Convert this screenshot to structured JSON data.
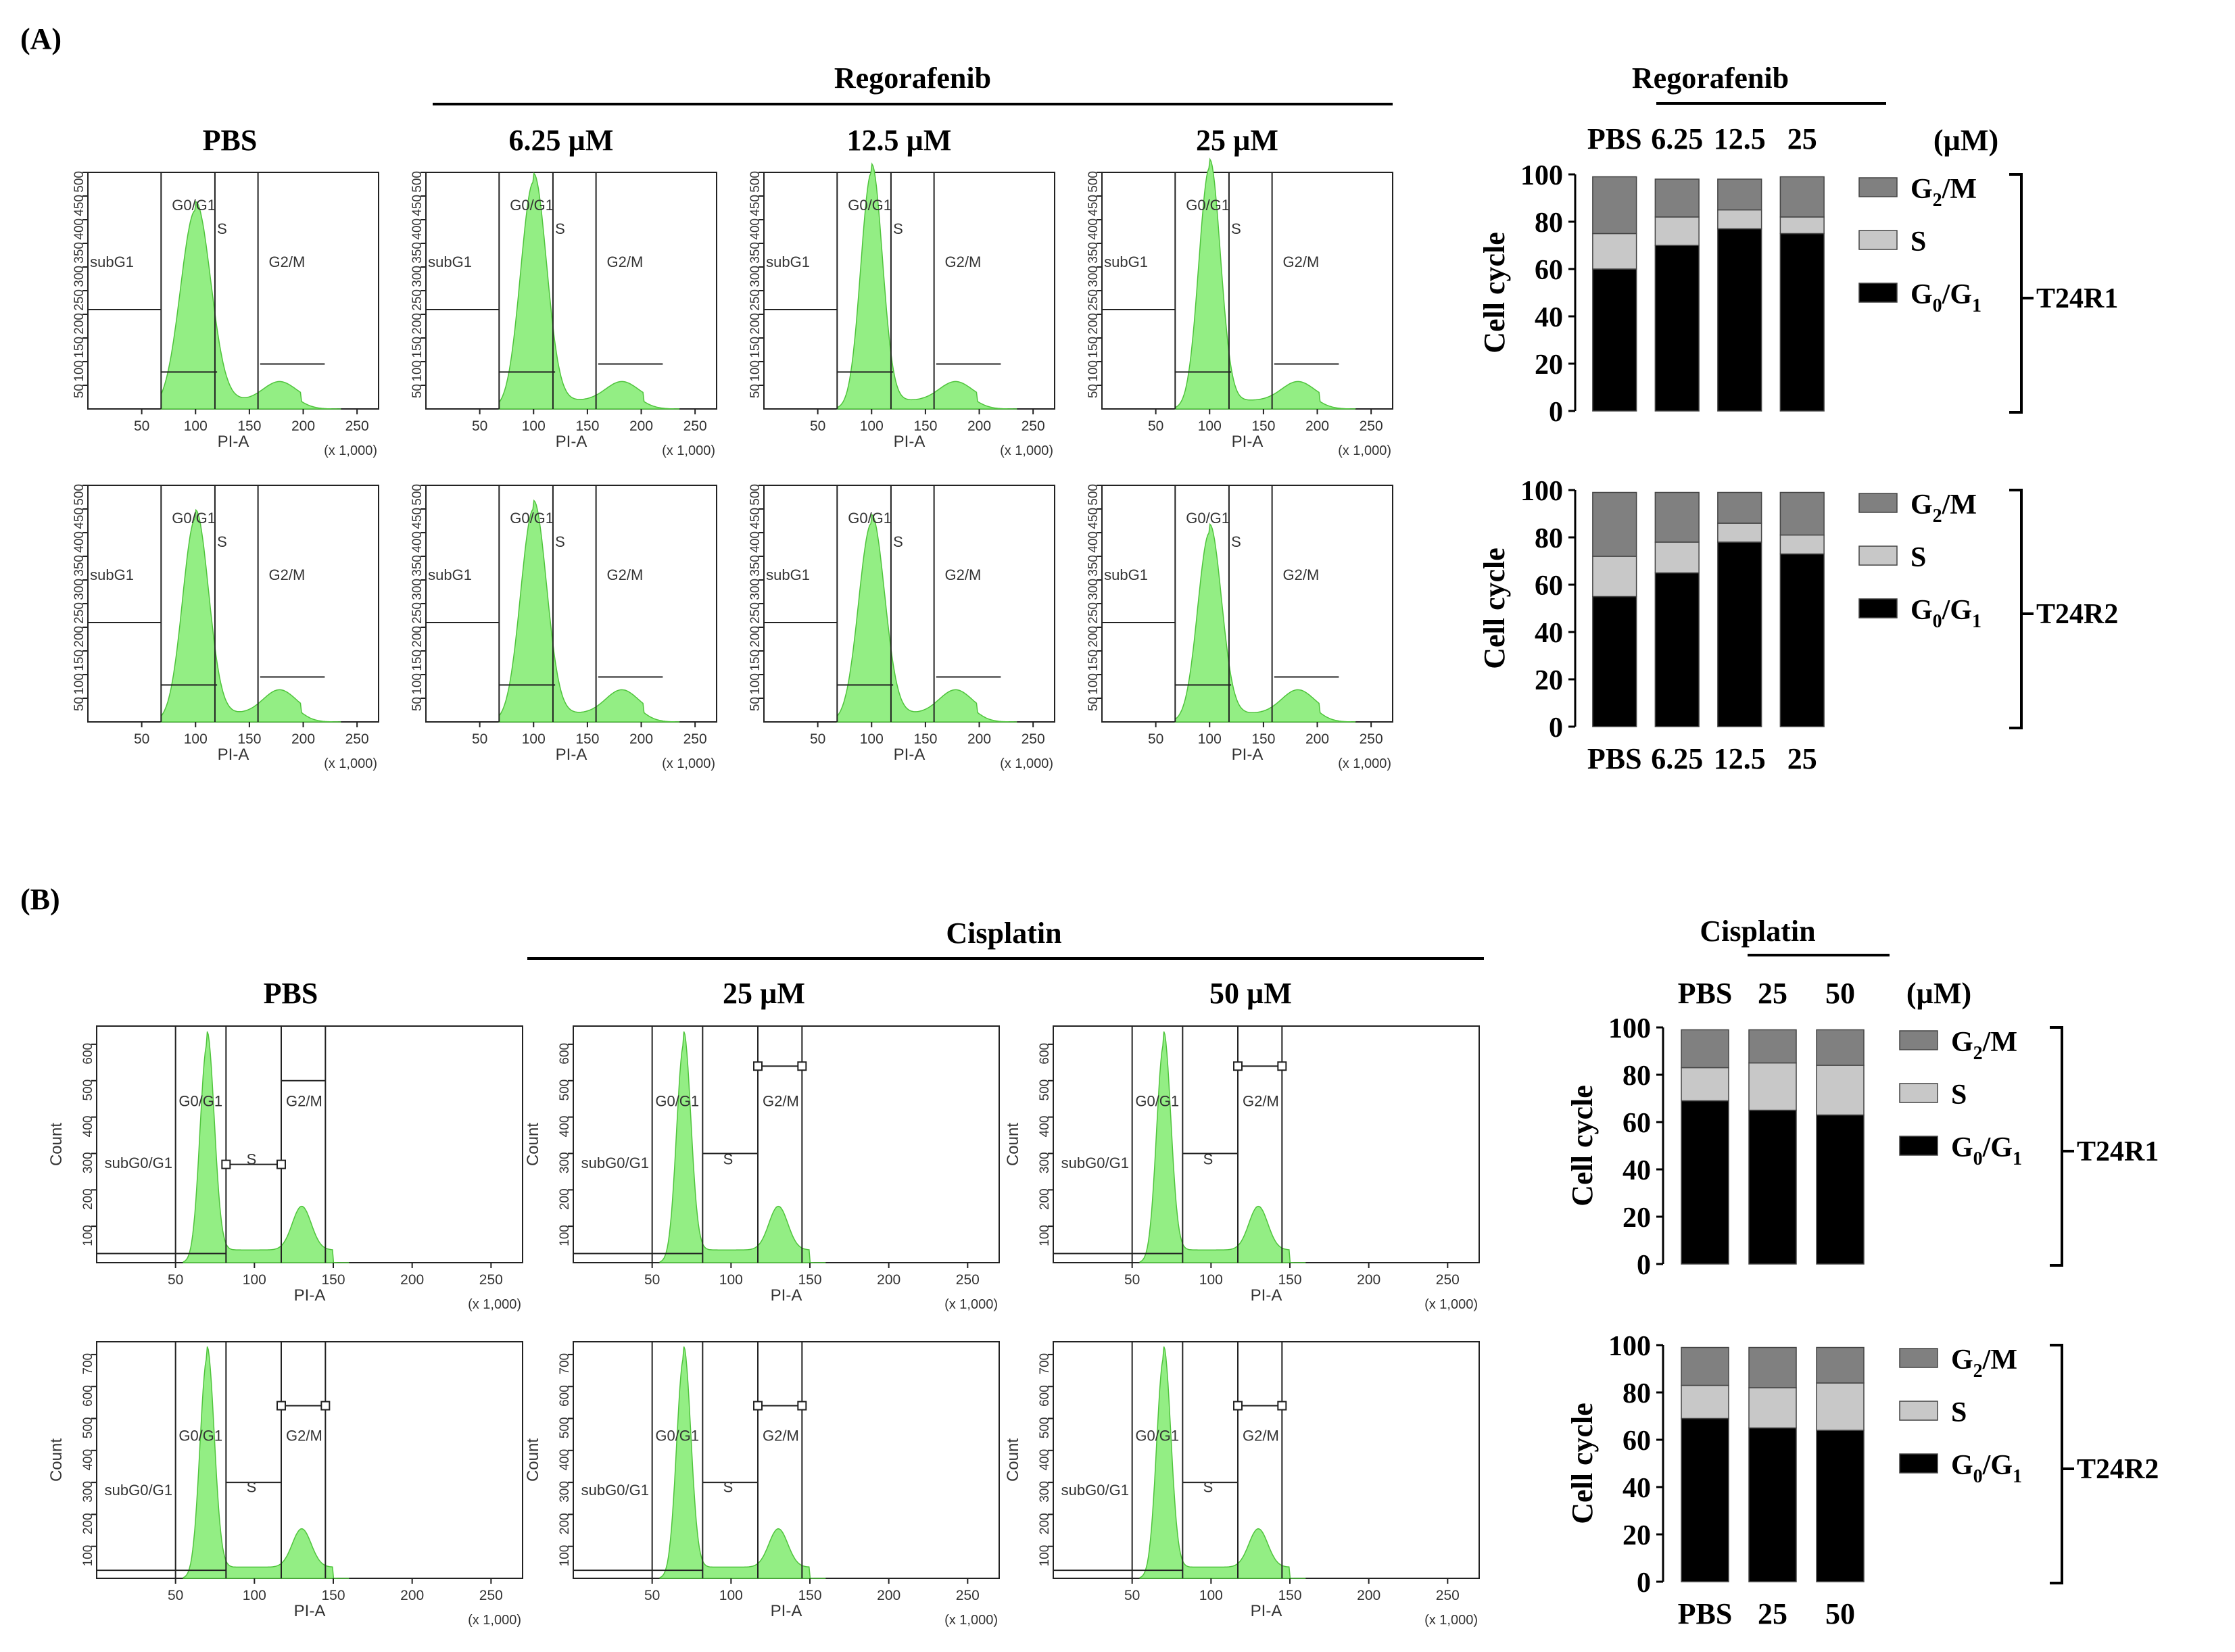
{
  "panel_labels": {
    "a": "(A)",
    "b": "(B)"
  },
  "colors": {
    "histogram_fill": "#93ee84",
    "histogram_stroke": "#4fc43c",
    "g2m": "#808080",
    "s": "#c8c8c8",
    "g0g1": "#000000"
  },
  "panel_a": {
    "drug": "Regorafenib",
    "conditions": [
      "PBS",
      "6.25 µM",
      "12.5 µM",
      "25 µM"
    ],
    "histogram": {
      "xlabel": "PI-A",
      "xunit": "(x 1,000)",
      "xticks": [
        50,
        100,
        150,
        200,
        250
      ],
      "yticks": [
        50,
        100,
        150,
        200,
        250,
        300,
        350,
        400,
        450,
        500
      ],
      "gate_labels": [
        "subG1",
        "G0/G1",
        "S",
        "G2/M"
      ]
    },
    "bar_header": {
      "drug": "Regorafenib",
      "unit": "(µM)"
    },
    "bar_categories": [
      "PBS",
      "6.25",
      "12.5",
      "25"
    ],
    "bar_ylabel": "Cell cycle",
    "yticks": [
      0,
      20,
      40,
      60,
      80,
      100
    ],
    "legend": [
      {
        "key": "g2m",
        "main": "G",
        "sub": "2",
        "rest": "/M"
      },
      {
        "key": "s",
        "main": "S",
        "sub": "",
        "rest": ""
      },
      {
        "key": "g0g1",
        "main": "G",
        "sub": "0",
        "rest": "/G",
        "sub2": "1"
      }
    ]
  },
  "panel_b": {
    "drug": "Cisplatin",
    "conditions": [
      "PBS",
      "25 µM",
      "50 µM"
    ],
    "histogram": {
      "xlabel": "PI-A",
      "ylabel": "Count",
      "xunit": "(x 1,000)",
      "xticks": [
        50,
        100,
        150,
        200,
        250
      ],
      "gate_labels": [
        "subG0/G1",
        "G0/G1",
        "S",
        "G2/M"
      ]
    },
    "bar_header": {
      "drug": "Cisplatin",
      "unit": "(µM)"
    },
    "bar_categories": [
      "PBS",
      "25",
      "50"
    ],
    "bar_ylabel": "Cell cycle",
    "yticks": [
      0,
      20,
      40,
      60,
      80,
      100
    ],
    "legend": [
      {
        "key": "g2m",
        "main": "G",
        "sub": "2",
        "rest": "/M"
      },
      {
        "key": "s",
        "main": "S",
        "sub": "",
        "rest": ""
      },
      {
        "key": "g0g1",
        "main": "G",
        "sub": "0",
        "rest": "/G",
        "sub2": "1"
      }
    ]
  },
  "chart_data": [
    {
      "type": "bar",
      "stacked": true,
      "title": "Regorafenib T24R1",
      "group": "T24R1",
      "categories": [
        "PBS",
        "6.25",
        "12.5",
        "25"
      ],
      "ylabel": "Cell cycle",
      "ylim": [
        0,
        100
      ],
      "series": [
        {
          "name": "G0/G1",
          "values": [
            60,
            70,
            77,
            75
          ]
        },
        {
          "name": "S",
          "values": [
            15,
            12,
            8,
            7
          ]
        },
        {
          "name": "G2/M",
          "values": [
            24,
            16,
            13,
            17
          ]
        }
      ]
    },
    {
      "type": "bar",
      "stacked": true,
      "title": "Regorafenib T24R2",
      "group": "T24R2",
      "categories": [
        "PBS",
        "6.25",
        "12.5",
        "25"
      ],
      "ylabel": "Cell cycle",
      "ylim": [
        0,
        100
      ],
      "series": [
        {
          "name": "G0/G1",
          "values": [
            55,
            65,
            78,
            73
          ]
        },
        {
          "name": "S",
          "values": [
            17,
            13,
            8,
            8
          ]
        },
        {
          "name": "G2/M",
          "values": [
            27,
            21,
            13,
            18
          ]
        }
      ]
    },
    {
      "type": "bar",
      "stacked": true,
      "title": "Cisplatin T24R1",
      "group": "T24R1",
      "categories": [
        "PBS",
        "25",
        "50"
      ],
      "ylabel": "Cell cycle",
      "ylim": [
        0,
        100
      ],
      "series": [
        {
          "name": "G0/G1",
          "values": [
            69,
            65,
            63
          ]
        },
        {
          "name": "S",
          "values": [
            14,
            20,
            21
          ]
        },
        {
          "name": "G2/M",
          "values": [
            16,
            14,
            15
          ]
        }
      ]
    },
    {
      "type": "bar",
      "stacked": true,
      "title": "Cisplatin T24R2",
      "group": "T24R2",
      "categories": [
        "PBS",
        "25",
        "50"
      ],
      "ylabel": "Cell cycle",
      "ylim": [
        0,
        100
      ],
      "series": [
        {
          "name": "G0/G1",
          "values": [
            69,
            65,
            64
          ]
        },
        {
          "name": "S",
          "values": [
            14,
            17,
            20
          ]
        },
        {
          "name": "G2/M",
          "values": [
            16,
            17,
            15
          ]
        }
      ]
    }
  ]
}
